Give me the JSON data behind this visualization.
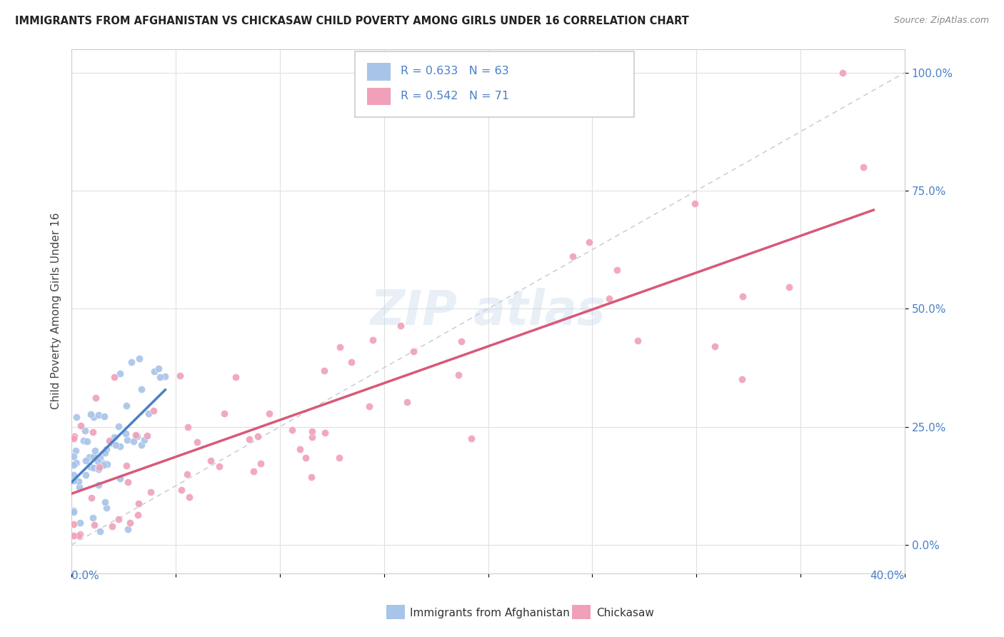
{
  "title": "IMMIGRANTS FROM AFGHANISTAN VS CHICKASAW CHILD POVERTY AMONG GIRLS UNDER 16 CORRELATION CHART",
  "source": "Source: ZipAtlas.com",
  "ylabel": "Child Poverty Among Girls Under 16",
  "legend_R1": "R = 0.633",
  "legend_N1": "N = 63",
  "legend_R2": "R = 0.542",
  "legend_N2": "N = 71",
  "legend_label1": "Immigrants from Afghanistan",
  "legend_label2": "Chickasaw",
  "blue_scatter_color": "#a8c4e8",
  "blue_line_color": "#4a80c8",
  "pink_scatter_color": "#f0a0b8",
  "pink_line_color": "#d85878",
  "legend_R_color": "#4a80c8",
  "watermark_color": "#c8d8ea",
  "grid_color": "#e0e0e0",
  "diag_color": "#c0c8d8",
  "background_color": "#ffffff",
  "title_color": "#222222",
  "source_color": "#888888",
  "tick_label_color": "#4a80c8",
  "xlim": [
    0.0,
    0.4
  ],
  "ylim": [
    0.0,
    1.05
  ],
  "yticks": [
    0.0,
    0.25,
    0.5,
    0.75,
    1.0
  ],
  "ytick_labels": [
    "0.0%",
    "25.0%",
    "50.0%",
    "75.0%",
    "100.0%"
  ],
  "xtick_left": "0.0%",
  "xtick_right": "40.0%"
}
